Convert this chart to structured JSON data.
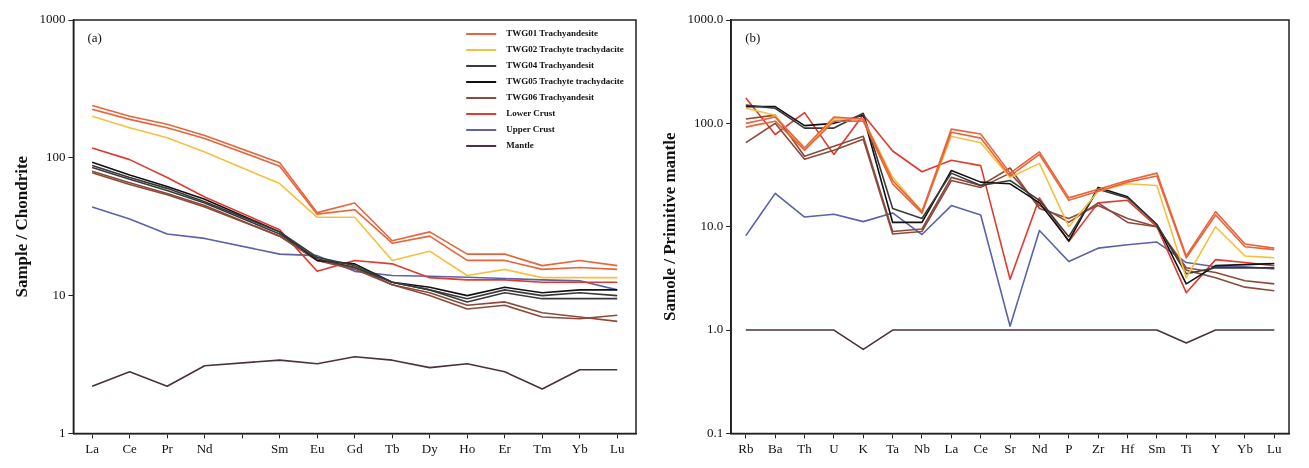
{
  "chart_data": [
    {
      "type": "line",
      "annotations": [
        "(a)"
      ],
      "ylabel": "Sample / Chondrite",
      "categories": [
        "La",
        "Ce",
        "Pr",
        "Nd",
        null,
        "Sm",
        "Eu",
        "Gd",
        "Tb",
        "Dy",
        "Ho",
        "Er",
        "Tm",
        "Yb",
        "Lu"
      ],
      "log": "y",
      "ylim": [
        1,
        1000
      ],
      "yticks": [
        1,
        10,
        100,
        1000
      ],
      "legend": "top right",
      "marker": "none",
      "line_style": "solid",
      "series": [
        {
          "name": "TWG01 Trachyandesite",
          "color": "#e8643a",
          "values": [
            240,
            200,
            175,
            145,
            null,
            92,
            40,
            47,
            25,
            29,
            20,
            20,
            16.5,
            18,
            16.5
          ]
        },
        {
          "color": "#e8643a",
          "values": [
            225,
            190,
            165,
            138,
            null,
            87,
            39,
            42,
            24,
            27,
            18,
            18,
            15.5,
            16,
            15.5
          ]
        },
        {
          "name": "TWG02 Trachyte trachydacite",
          "color": "#f5c040",
          "values": [
            200,
            165,
            140,
            110,
            null,
            65,
            37,
            37,
            18,
            21,
            14,
            15.5,
            13.5,
            13.5,
            13.5
          ]
        },
        {
          "name": "TWG04 Trachyandesit",
          "color": "#3a3a3a",
          "values": [
            88,
            72,
            60,
            48,
            null,
            29,
            19,
            16.5,
            12.5,
            11,
            9.5,
            11,
            10,
            10.5,
            10
          ]
        },
        {
          "color": "#3a3a3a",
          "values": [
            85,
            70,
            58,
            47,
            null,
            28,
            18.5,
            16,
            12.5,
            11,
            9,
            10.5,
            9.5,
            9.5,
            9.5
          ]
        },
        {
          "name": "TWG05 Trachyte trachydacite",
          "color": "#111111",
          "values": [
            93,
            75,
            62,
            50,
            null,
            29,
            18,
            17,
            12.5,
            11.5,
            10,
            11.5,
            10.5,
            11,
            11
          ]
        },
        {
          "name": "TWG06 Trachyandesit",
          "color": "#8b4a3a",
          "values": [
            80,
            66,
            55,
            45,
            null,
            27,
            18,
            16,
            12,
            10.5,
            8.5,
            9,
            7.5,
            7,
            6.5
          ]
        },
        {
          "color": "#8b4a3a",
          "values": [
            78,
            64,
            54,
            44,
            null,
            27,
            18,
            15.5,
            12,
            10,
            8,
            8.5,
            7,
            6.8,
            7.2
          ]
        },
        {
          "name": "Lower Crust",
          "color": "#e03a30",
          "values": [
            118,
            97,
            72,
            52,
            null,
            30,
            15,
            18,
            17,
            13.5,
            13,
            13,
            12.5,
            12.5,
            12.5
          ]
        },
        {
          "name": "Upper Crust",
          "color": "#5a62a8",
          "values": [
            44,
            36,
            28,
            26,
            null,
            20,
            19.5,
            15,
            14,
            13.8,
            13.6,
            13.3,
            13,
            12.8,
            11
          ]
        },
        {
          "name": "Mantle",
          "color": "#4a3040",
          "values": [
            2.2,
            2.8,
            2.2,
            3.1,
            null,
            3.4,
            3.2,
            3.6,
            3.4,
            3.0,
            3.2,
            2.8,
            2.1,
            2.9,
            2.9
          ]
        }
      ]
    },
    {
      "type": "line",
      "annotations": [
        "(b)"
      ],
      "ylabel": "Samole / Primitive mantle",
      "categories": [
        "Rb",
        "Ba",
        "Th",
        "U",
        "K",
        "Ta",
        "Nb",
        "La",
        "Ce",
        "Sr",
        "Nd",
        "P",
        "Zr",
        "Hf",
        "Sm",
        "Ti",
        "Y",
        "Yb",
        "Lu"
      ],
      "log": "y",
      "ylim": [
        0.1,
        1000
      ],
      "yticks": [
        {
          "value": 0.1,
          "label": "0.1"
        },
        {
          "value": 1,
          "label": "1.0"
        },
        {
          "value": 10,
          "label": "10.0"
        },
        {
          "value": 100,
          "label": "100.0"
        },
        {
          "value": 1000,
          "label": "1000.0"
        }
      ],
      "marker": "none",
      "line_style": "solid",
      "series": [
        {
          "color": "#e8643a",
          "values": [
            100,
            115,
            58,
            115,
            110,
            28,
            14,
            88,
            79,
            33,
            53,
            19,
            23,
            28,
            33,
            5.2,
            14,
            6.8,
            6.2
          ]
        },
        {
          "color": "#e8643a",
          "values": [
            92,
            105,
            55,
            105,
            105,
            26,
            13.5,
            82,
            72,
            31,
            50,
            18,
            22,
            27,
            31,
            5,
            13,
            6.4,
            6
          ]
        },
        {
          "color": "#f5c040",
          "values": [
            140,
            120,
            55,
            110,
            110,
            30,
            14,
            75,
            65,
            30,
            41,
            10,
            22,
            26,
            25,
            3.2,
            10,
            5.2,
            5
          ]
        },
        {
          "color": "#3a3a3a",
          "values": [
            150,
            140,
            90,
            90,
            125,
            15,
            12,
            33,
            25,
            28,
            18,
            8,
            23,
            19,
            10.5,
            3.5,
            4,
            4,
            4
          ]
        },
        {
          "color": "#111111",
          "values": [
            145,
            145,
            95,
            100,
            120,
            11,
            11,
            35,
            27,
            26,
            17,
            7.3,
            24,
            19.5,
            10.5,
            2.8,
            4.2,
            4.3,
            4.4
          ]
        },
        {
          "color": "#8b4a3a",
          "values": [
            110,
            120,
            48,
            60,
            75,
            9,
            9.5,
            30,
            25,
            37,
            15,
            12,
            16,
            12,
            10,
            4,
            3.6,
            3,
            2.8
          ]
        },
        {
          "color": "#8b4a3a",
          "values": [
            65,
            100,
            45,
            55,
            70,
            8.5,
            9,
            28,
            24,
            33,
            16,
            11,
            17,
            11,
            10,
            3.8,
            3.2,
            2.6,
            2.4
          ]
        },
        {
          "color": "#e03a30",
          "values": [
            176,
            78,
            127,
            50,
            121,
            54,
            34,
            44,
            39,
            3.1,
            19,
            7.2,
            17,
            18,
            10,
            2.3,
            4.8,
            4.5,
            4.2
          ]
        },
        {
          "color": "#5a62a8",
          "values": [
            8.2,
            21,
            12.4,
            13.2,
            11.2,
            13.6,
            8.4,
            16,
            13,
            1.09,
            9.2,
            4.6,
            6.2,
            6.7,
            7.1,
            4.5,
            4.1,
            4.1,
            3.9
          ]
        },
        {
          "color": "#4a3040",
          "values": [
            1,
            1,
            1,
            1,
            0.65,
            1,
            1,
            1,
            1,
            1,
            1,
            1,
            1,
            1,
            1,
            0.75,
            1,
            1,
            1
          ]
        }
      ]
    }
  ]
}
